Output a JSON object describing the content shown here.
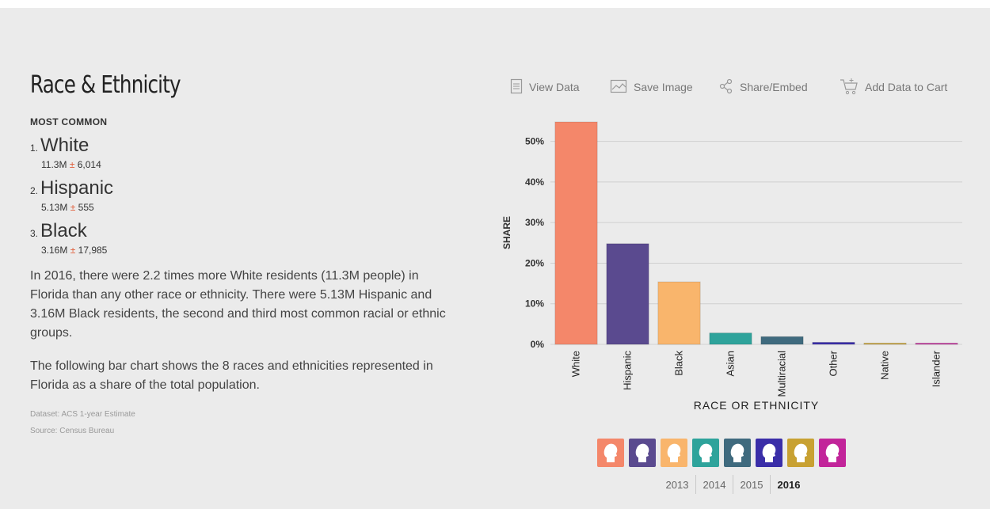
{
  "section": {
    "title": "Race & Ethnicity",
    "most_common_label": "MOST COMMON",
    "ranks": [
      {
        "num": "1.",
        "name": "White",
        "value": "11.3M",
        "pm": "±",
        "moe": "6,014"
      },
      {
        "num": "2.",
        "name": "Hispanic",
        "value": "5.13M",
        "pm": "±",
        "moe": "555"
      },
      {
        "num": "3.",
        "name": "Black",
        "value": "3.16M",
        "pm": "±",
        "moe": "17,985"
      }
    ],
    "paragraph1": "In 2016, there were 2.2 times more White residents (11.3M people) in Florida than any other race or ethnicity. There were 5.13M Hispanic and 3.16M Black residents, the second and third most common racial or ethnic groups.",
    "paragraph2": "The following bar chart shows the 8 races and ethnicities represented in Florida as a share of the total population.",
    "dataset": "Dataset: ACS 1-year Estimate",
    "source": "Source: Census Bureau"
  },
  "toolbar": {
    "view_data": "View Data",
    "save_image": "Save Image",
    "share_embed": "Share/Embed",
    "add_to_cart": "Add Data to Cart"
  },
  "chart_data": {
    "type": "bar",
    "categories": [
      "White",
      "Hispanic",
      "Black",
      "Asian",
      "Multiracial",
      "Other",
      "Native",
      "Islander"
    ],
    "values": [
      54.8,
      24.8,
      15.4,
      2.8,
      1.9,
      0.5,
      0.3,
      0.1
    ],
    "colors": [
      "#f4876a",
      "#5a4a8f",
      "#f9b56c",
      "#2ea39b",
      "#3f6a7e",
      "#3a2ea8",
      "#c8a132",
      "#c2259a"
    ],
    "ylabel": "SHARE",
    "xlabel": "RACE OR ETHNICITY",
    "ylim": [
      0,
      55
    ],
    "yticks": [
      0,
      10,
      20,
      30,
      40,
      50
    ],
    "ytick_labels": [
      "0%",
      "10%",
      "20%",
      "30%",
      "40%",
      "50%"
    ],
    "grid": true
  },
  "years": {
    "items": [
      "2013",
      "2014",
      "2015",
      "2016"
    ],
    "active": "2016"
  }
}
